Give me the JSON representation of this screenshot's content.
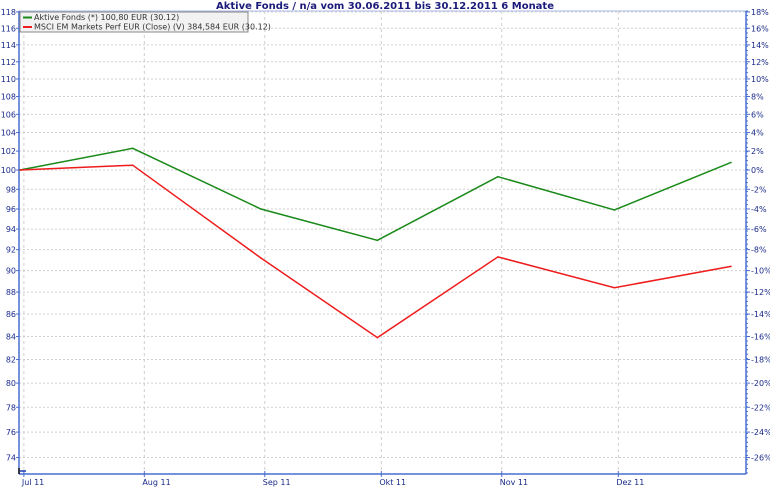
{
  "chart_data": {
    "type": "line",
    "title": "Aktive Fonds / n/a vom 30.06.2011 bis 30.12.2011 6 Monate",
    "y_scale": "log",
    "ylim": [
      72.7,
      118
    ],
    "left_ticks": [
      118,
      116,
      114,
      112,
      110,
      108,
      106,
      104,
      102,
      100,
      98,
      96,
      94,
      92,
      90,
      88,
      86,
      84,
      82,
      80,
      78,
      76,
      74
    ],
    "right_ticks": [
      "18%",
      "16%",
      "14%",
      "12%",
      "10%",
      "8%",
      "6%",
      "4%",
      "2%",
      "0%",
      "-2%",
      "-4%",
      "-6%",
      "-8%",
      "-10%",
      "-12%",
      "-14%",
      "-16%",
      "-18%",
      "-20%",
      "-22%",
      "-24%",
      "-26%"
    ],
    "x_ticks": [
      {
        "date": "2011-07-01",
        "label": "Jul 11"
      },
      {
        "date": "2011-08-01",
        "label": "Aug 11"
      },
      {
        "date": "2011-09-01",
        "label": "Sep 11"
      },
      {
        "date": "2011-10-01",
        "label": "Okt 11"
      },
      {
        "date": "2011-11-01",
        "label": "Nov 11"
      },
      {
        "date": "2011-12-01",
        "label": "Dez 11"
      }
    ],
    "xlim": [
      "2011-06-30",
      "2011-12-30"
    ],
    "x": [
      "2011-06-30",
      "2011-07-29",
      "2011-08-31",
      "2011-09-30",
      "2011-10-31",
      "2011-11-30",
      "2011-12-30"
    ],
    "series": [
      {
        "name": "Aktive Fonds (*) 100,80 EUR (30.12)",
        "color": "#1a8a1a",
        "values": [
          100,
          102.3,
          96.0,
          92.9,
          99.3,
          95.9,
          100.8
        ]
      },
      {
        "name": "MSCI EM Markets Perf EUR (Close) (V) 384,584 EUR (30.12)",
        "color": "#ee1c1c",
        "values": [
          100,
          100.5,
          91.2,
          83.9,
          91.3,
          88.4,
          90.4
        ]
      }
    ],
    "grid": true,
    "legend": "top-left",
    "axis_color": "#4a6fd0"
  }
}
